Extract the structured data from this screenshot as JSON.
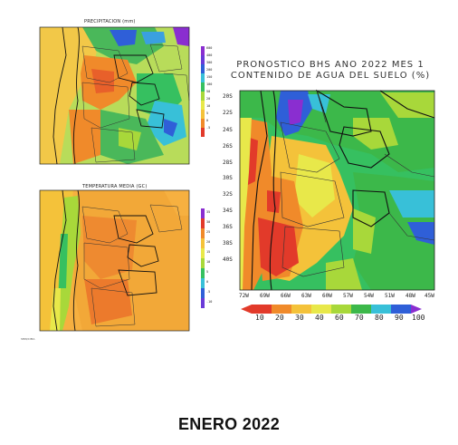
{
  "maps": {
    "precip": {
      "title": "PRECIPITACION (mm)",
      "colorbar_labels": [
        "600",
        "400",
        "300",
        "200",
        "150",
        "100",
        "50",
        "20",
        "10",
        "5",
        "0",
        "-5"
      ]
    },
    "temp": {
      "title": "TEMPERATURA MEDIA (GC)",
      "colorbar_labels": [
        "35",
        "30",
        "25",
        "20",
        "15",
        "10",
        "5",
        "0",
        "-5",
        "-10"
      ]
    },
    "soil": {
      "title_line1": "PRONOSTICO BHS ANO 2022 MES 1",
      "title_line2": "CONTENIDO DE AGUA DEL SUELO (%)",
      "lat_labels": [
        "20S",
        "22S",
        "24S",
        "26S",
        "28S",
        "30S",
        "32S",
        "34S",
        "36S",
        "38S",
        "40S"
      ],
      "lon_labels": [
        "72W",
        "69W",
        "66W",
        "63W",
        "60W",
        "57W",
        "54W",
        "51W",
        "48W",
        "45W"
      ],
      "colorbar_labels": [
        "10",
        "20",
        "30",
        "40",
        "60",
        "70",
        "80",
        "90",
        "100"
      ]
    }
  },
  "credit": "SMN/CIMA",
  "footer": "ENERO 2022",
  "colors": {
    "very_dry": "#e23a2a",
    "dry": "#f08a2a",
    "medium": "#f4c23a",
    "mid_wet": "#a8d83a",
    "wet": "#3cb84a",
    "very_wet": "#38c0d8",
    "blue": "#2f5fd8",
    "purple": "#8a2ed0",
    "ocean_precip": "#d8e8a0",
    "ocean_temp": "#f6b040"
  }
}
